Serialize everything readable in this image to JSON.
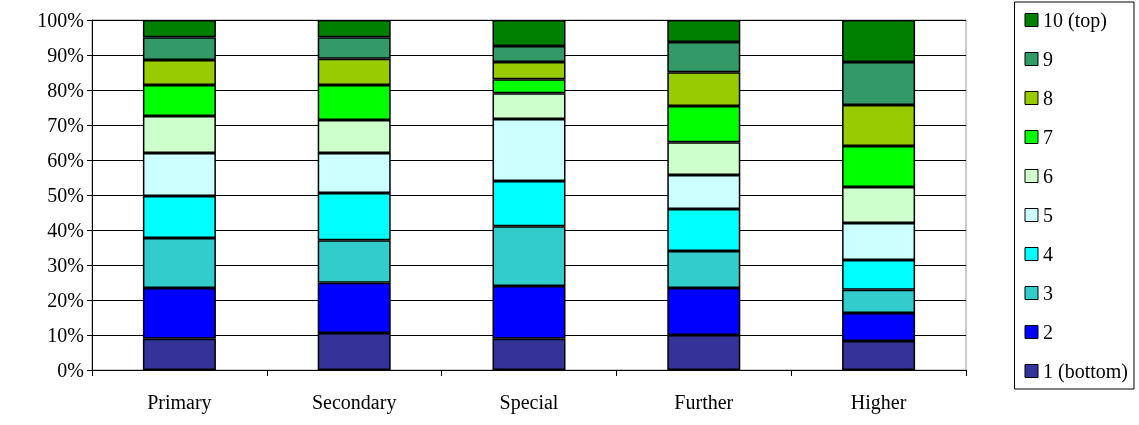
{
  "chart_data": {
    "type": "bar",
    "stacked": true,
    "categories": [
      "Primary",
      "Secondary",
      "Special",
      "Further",
      "Higher"
    ],
    "series": [
      {
        "name": "1 (bottom)",
        "color": "#333399",
        "values": [
          8.9,
          10.6,
          8.9,
          10,
          8.3
        ]
      },
      {
        "name": "2",
        "color": "#0000ff",
        "values": [
          14.5,
          14.3,
          15.1,
          13.4,
          8
        ]
      },
      {
        "name": "3",
        "color": "#33cccc",
        "values": [
          14.3,
          12.2,
          17.1,
          10.6,
          6.6
        ]
      },
      {
        "name": "4",
        "color": "#00ffff",
        "values": [
          12,
          13.5,
          12.9,
          12,
          8.5
        ]
      },
      {
        "name": "5",
        "color": "#ccffff",
        "values": [
          12.3,
          11.4,
          17.7,
          9.7,
          10.6
        ]
      },
      {
        "name": "6",
        "color": "#ccffcc",
        "values": [
          10.6,
          9.4,
          7.4,
          9.4,
          10.3
        ]
      },
      {
        "name": "7",
        "color": "#00ff00",
        "values": [
          8.8,
          10,
          4,
          10.3,
          11.7
        ]
      },
      {
        "name": "8",
        "color": "#99cc00",
        "values": [
          7.2,
          7.5,
          4.9,
          9.7,
          11.7
        ]
      },
      {
        "name": "9",
        "color": "#339966",
        "values": [
          6.5,
          6.2,
          4.6,
          8.6,
          12.3
        ]
      },
      {
        "name": "10 (top)",
        "color": "#008000",
        "values": [
          4.9,
          4.9,
          7.4,
          6.3,
          12
        ]
      }
    ],
    "ylim": [
      0,
      100
    ],
    "yticks": [
      {
        "value": 0,
        "label": "0%"
      },
      {
        "value": 10,
        "label": "10%"
      },
      {
        "value": 20,
        "label": "20%"
      },
      {
        "value": 30,
        "label": "30%"
      },
      {
        "value": 40,
        "label": "40%"
      },
      {
        "value": 50,
        "label": "50%"
      },
      {
        "value": 60,
        "label": "60%"
      },
      {
        "value": 70,
        "label": "70%"
      },
      {
        "value": 80,
        "label": "80%"
      },
      {
        "value": 90,
        "label": "90%"
      },
      {
        "value": 100,
        "label": "100%"
      }
    ],
    "grid": "y",
    "legend": "right"
  }
}
